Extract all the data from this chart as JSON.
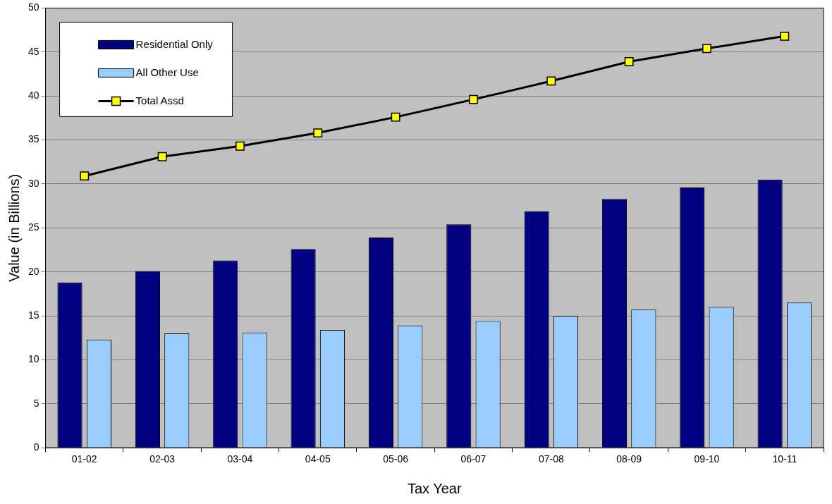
{
  "chart_data": {
    "type": "bar",
    "xlabel": "Tax Year",
    "ylabel": "Value (in Billions)",
    "categories": [
      "01-02",
      "02-03",
      "03-04",
      "04-05",
      "05-06",
      "06-07",
      "07-08",
      "08-09",
      "09-10",
      "10-11"
    ],
    "series": [
      {
        "name": "Residential Only",
        "color": "#000080",
        "values": [
          18.8,
          20.1,
          21.3,
          22.6,
          23.9,
          25.4,
          26.9,
          28.3,
          29.6,
          30.5
        ]
      },
      {
        "name": "All Other Use",
        "color": "#99ccff",
        "values": [
          12.3,
          13.0,
          13.1,
          13.4,
          13.9,
          14.4,
          15.0,
          15.7,
          16.0,
          16.5
        ]
      },
      {
        "name": "Total Assd",
        "type": "line",
        "color": "#000000",
        "values": [
          30.9,
          33.1,
          34.3,
          35.8,
          37.6,
          39.6,
          41.7,
          43.9,
          45.4,
          46.8
        ]
      }
    ],
    "ylim": [
      0,
      50
    ],
    "yticks": [
      0,
      5,
      10,
      15,
      20,
      25,
      30,
      35,
      40,
      45,
      50
    ],
    "grid": "y",
    "legend": "top left",
    "marker": "square"
  }
}
